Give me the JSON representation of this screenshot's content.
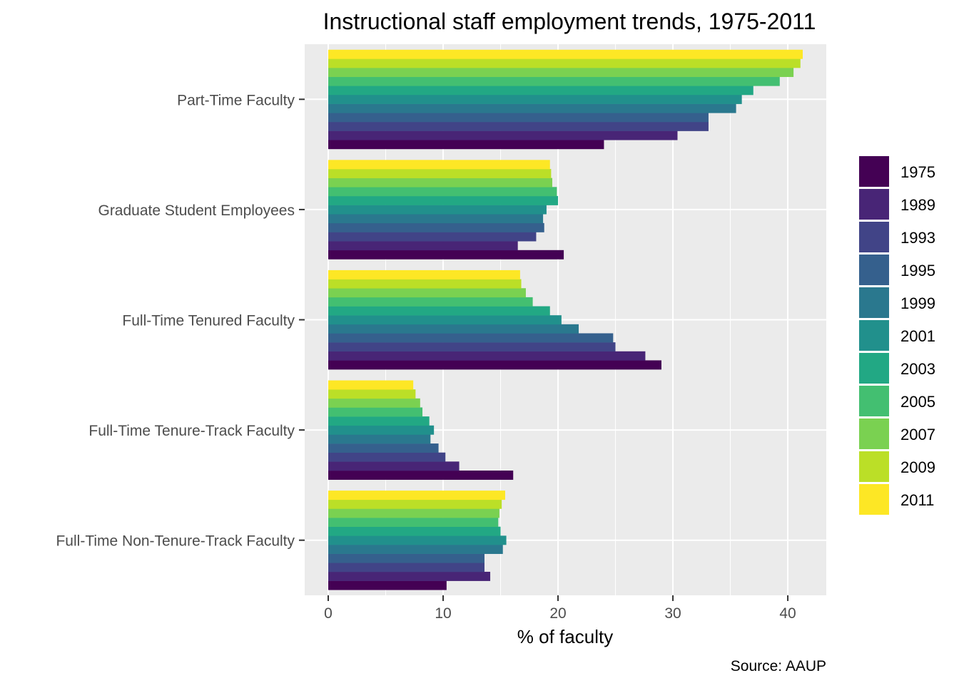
{
  "chart_data": {
    "type": "bar",
    "orientation": "horizontal",
    "title": "Instructional staff employment trends, 1975-2011",
    "xlabel": "% of faculty",
    "ylabel": "",
    "caption": "Source: AAUP",
    "xlim": [
      -2.05,
      43.35
    ],
    "xticks": [
      0,
      10,
      20,
      30,
      40
    ],
    "grid": true,
    "legend_position": "right",
    "categories": [
      "Part-Time Faculty",
      "Graduate Student Employees",
      "Full-Time Tenured Faculty",
      "Full-Time Tenure-Track Faculty",
      "Full-Time Non-Tenure-Track Faculty"
    ],
    "series": [
      {
        "name": "1975",
        "color": "#440154",
        "values": [
          24.0,
          20.5,
          29.0,
          16.1,
          10.3
        ]
      },
      {
        "name": "1989",
        "color": "#482576",
        "values": [
          30.4,
          16.5,
          27.6,
          11.4,
          14.1
        ]
      },
      {
        "name": "1993",
        "color": "#414487",
        "values": [
          33.1,
          18.1,
          25.0,
          10.2,
          13.6
        ]
      },
      {
        "name": "1995",
        "color": "#35608D",
        "values": [
          33.1,
          18.8,
          24.8,
          9.6,
          13.6
        ]
      },
      {
        "name": "1999",
        "color": "#2A788E",
        "values": [
          35.5,
          18.7,
          21.8,
          8.9,
          15.2
        ]
      },
      {
        "name": "2001",
        "color": "#21908C",
        "values": [
          36.0,
          19.0,
          20.3,
          9.2,
          15.5
        ]
      },
      {
        "name": "2003",
        "color": "#22A884",
        "values": [
          37.0,
          20.0,
          19.3,
          8.8,
          15.0
        ]
      },
      {
        "name": "2005",
        "color": "#43BF71",
        "values": [
          39.3,
          19.9,
          17.8,
          8.2,
          14.8
        ]
      },
      {
        "name": "2007",
        "color": "#7AD151",
        "values": [
          40.5,
          19.5,
          17.2,
          8.0,
          14.9
        ]
      },
      {
        "name": "2009",
        "color": "#BBDF27",
        "values": [
          41.1,
          19.4,
          16.8,
          7.6,
          15.1
        ]
      },
      {
        "name": "2011",
        "color": "#FDE725",
        "values": [
          41.3,
          19.3,
          16.7,
          7.4,
          15.4
        ]
      }
    ]
  }
}
